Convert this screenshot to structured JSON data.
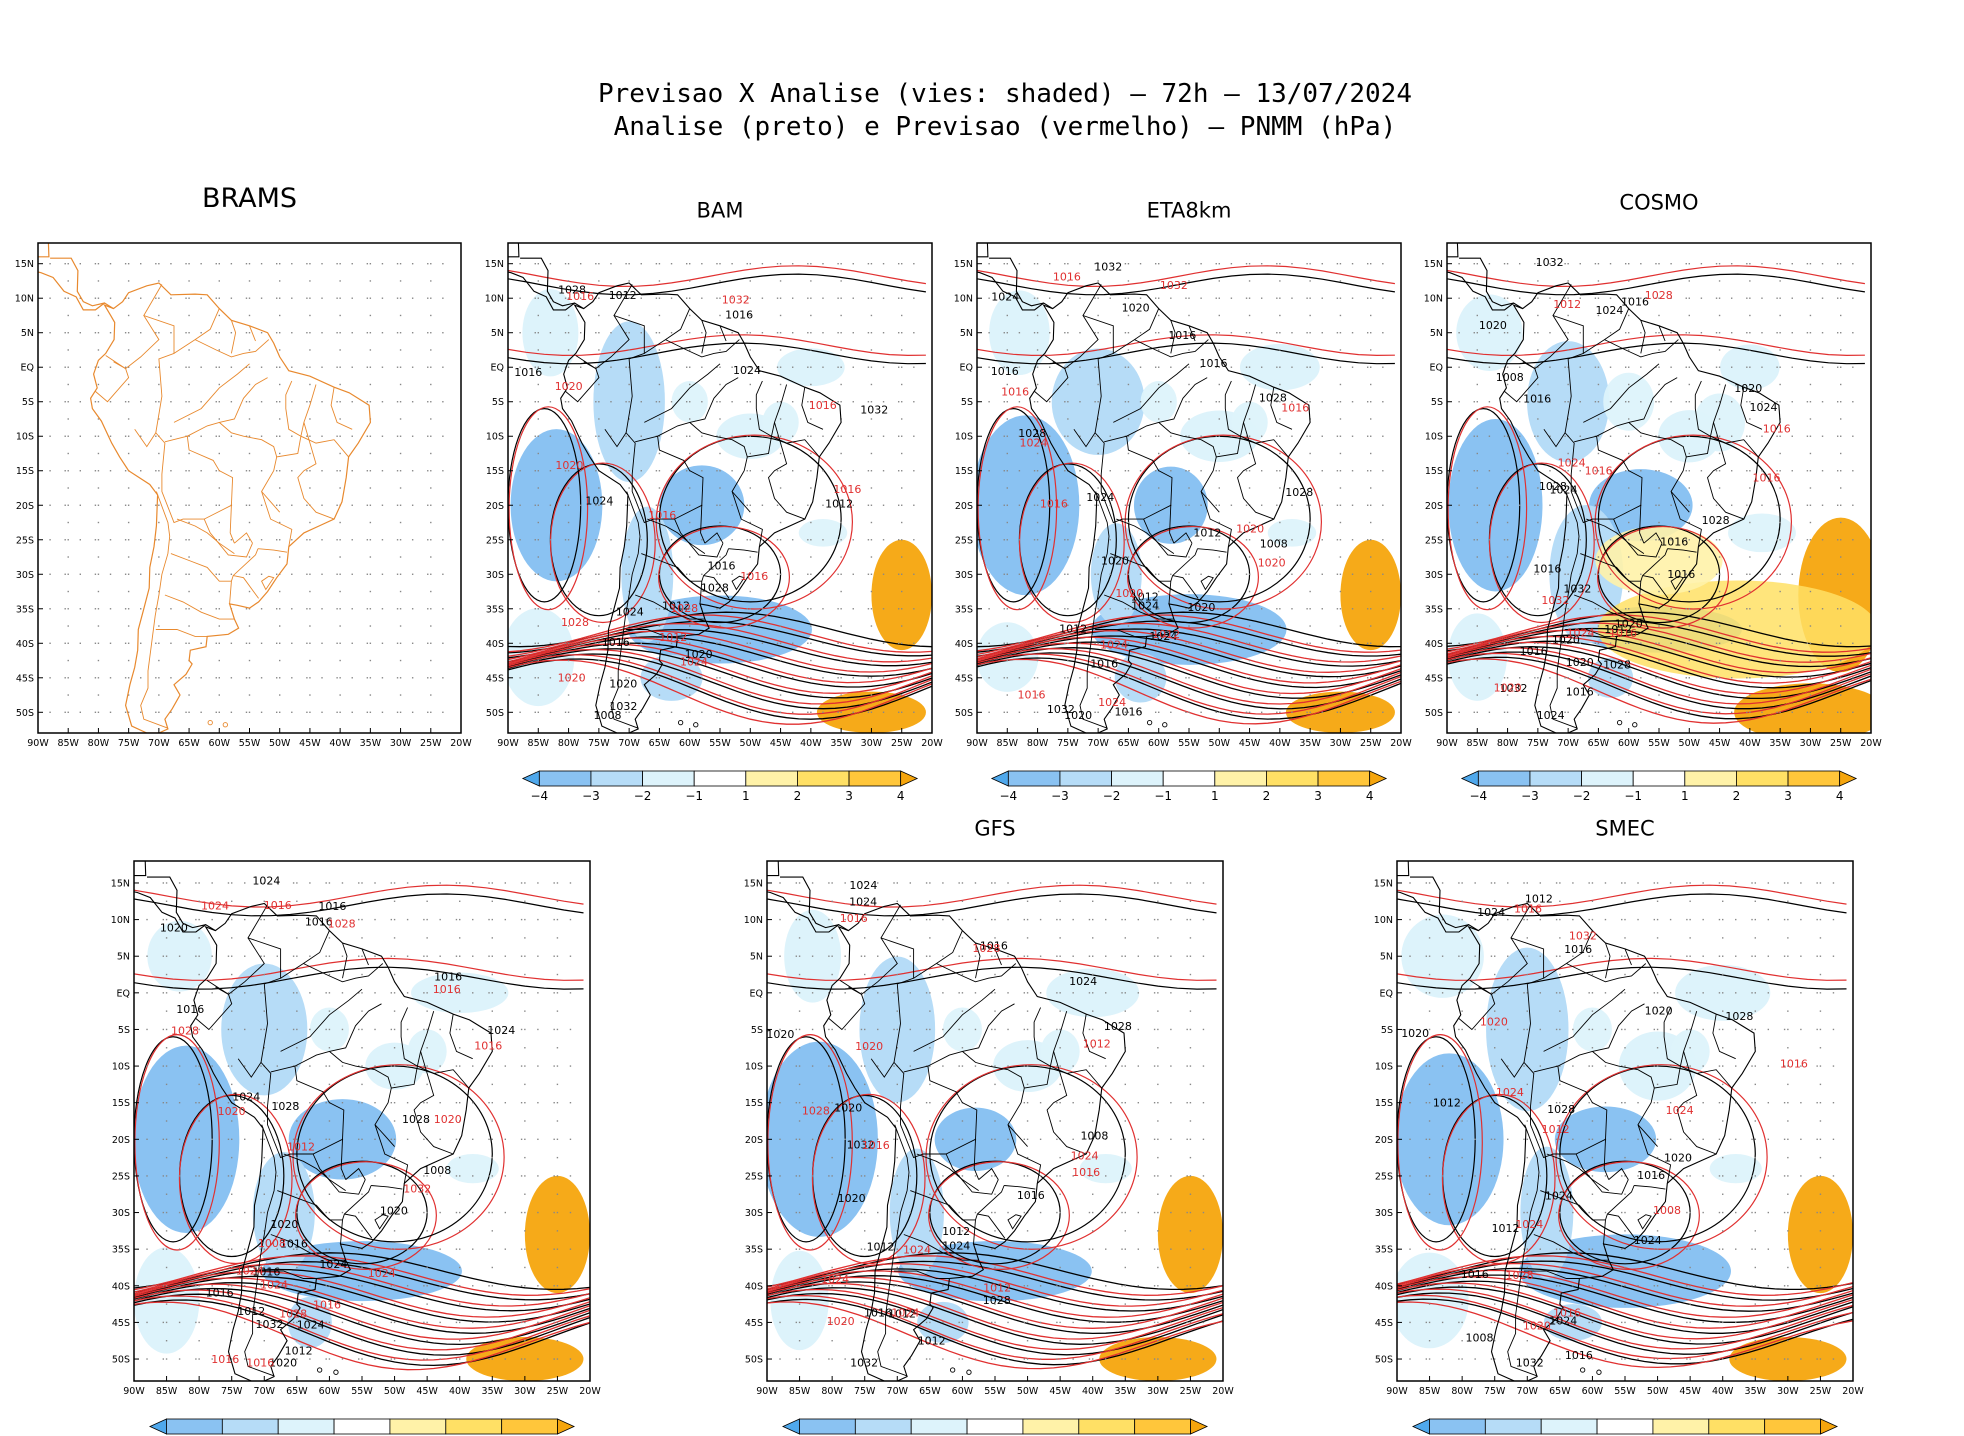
{
  "figure": {
    "title_line1": "Previsao X Analise (vies: shaded) – 72h – 13/07/2024",
    "title_line2": "Analise (preto) e Previsao (vermelho) – PNMM (hPa)"
  },
  "axes": {
    "lat_labels": [
      "15N",
      "10N",
      "5N",
      "EQ",
      "5S",
      "10S",
      "15S",
      "20S",
      "25S",
      "30S",
      "35S",
      "40S",
      "45S",
      "50S"
    ],
    "lon_labels": [
      "90W",
      "85W",
      "80W",
      "75W",
      "70W",
      "65W",
      "60W",
      "55W",
      "50W",
      "45W",
      "40W",
      "35W",
      "30W",
      "25W",
      "20W"
    ]
  },
  "colorbar": {
    "labels": [
      "−4",
      "−3",
      "−2",
      "−1",
      "1",
      "2",
      "3",
      "4"
    ],
    "colors": [
      "#4fa8ec",
      "#8ac2f2",
      "#b6dcf7",
      "#ddf3fb",
      "#ffffff",
      "#fff2a8",
      "#ffe065",
      "#ffc63b",
      "#f5a50d"
    ]
  },
  "colors": {
    "analysis_contour": "#000000",
    "forecast_contour": "#e03030",
    "coastline_brams": "#e8892e"
  },
  "panels": [
    {
      "id": "brams",
      "title": "BRAMS",
      "has_colorbar": false,
      "labels_black": [],
      "labels_red": []
    },
    {
      "id": "bam",
      "title": "BAM",
      "has_colorbar": true,
      "labels_black": [
        "1012",
        "1016",
        "1016",
        "1016",
        "1016",
        "1020",
        "1024",
        "1024",
        "1028",
        "1028",
        "1032",
        "1032",
        "1024",
        "1020",
        "1012",
        "1008",
        "1012"
      ],
      "labels_red": [
        "1016",
        "1016",
        "1012",
        "1016",
        "1020",
        "1016",
        "1020",
        "1028",
        "1032",
        "1028",
        "1016",
        "1020",
        "1024"
      ]
    },
    {
      "id": "eta8km",
      "title": "ETA8km",
      "has_colorbar": true,
      "labels_black": [
        "1012",
        "1016",
        "1016",
        "1012",
        "1016",
        "1016",
        "1016",
        "1020",
        "1020",
        "1024",
        "1020",
        "1028",
        "1024",
        "1024",
        "1032",
        "1032",
        "1028",
        "1028",
        "1024",
        "1020",
        "1012",
        "1008"
      ],
      "labels_red": [
        "1016",
        "1016",
        "1012",
        "1016",
        "1016",
        "1020",
        "1024",
        "1020",
        "1032",
        "1024",
        "1020",
        "1016",
        "1024"
      ]
    },
    {
      "id": "cosmo",
      "title": "COSMO",
      "has_colorbar": true,
      "labels_black": [
        "1012",
        "1016",
        "1016",
        "1016",
        "1016",
        "1016",
        "1020",
        "1016",
        "1020",
        "1020",
        "1024",
        "1024",
        "1024",
        "1028",
        "1032",
        "1032",
        "1028",
        "1028",
        "1032",
        "1024",
        "1020",
        "1016",
        "1008",
        "1020"
      ],
      "labels_red": [
        "1016",
        "1016",
        "1016",
        "1012",
        "1020",
        "1016",
        "1024",
        "1032",
        "1028",
        "1024"
      ]
    },
    {
      "id": "panel5",
      "title": "",
      "has_colorbar": true,
      "labels_black": [
        "1016",
        "1016",
        "1016",
        "1020",
        "1016",
        "1012",
        "1016",
        "1016",
        "1024",
        "1020",
        "1020",
        "1024",
        "1028",
        "1024",
        "1024",
        "1032",
        "1028",
        "1024",
        "1020",
        "1016",
        "1012",
        "1008"
      ],
      "labels_red": [
        "1016",
        "1012",
        "1016",
        "1016",
        "1016",
        "1020",
        "1020",
        "1024",
        "1028",
        "1024",
        "1032",
        "1028",
        "1028",
        "1016",
        "1008",
        "1024",
        "1024",
        "1016"
      ]
    },
    {
      "id": "gfs",
      "title": "GFS",
      "has_colorbar": true,
      "labels_black": [
        "1012",
        "1016",
        "1016",
        "1016",
        "1020",
        "1012",
        "1024",
        "1020",
        "1024",
        "1024",
        "1032",
        "1028",
        "1032",
        "1028",
        "1024",
        "1012",
        "1008",
        "1020",
        "1012"
      ],
      "labels_red": [
        "1012",
        "1016",
        "1012",
        "1016",
        "1020",
        "1024",
        "1028",
        "1024",
        "1028",
        "1024",
        "1016",
        "1020",
        "1024"
      ]
    },
    {
      "id": "smec",
      "title": "SMEC",
      "has_colorbar": true,
      "labels_black": [
        "1012",
        "1016",
        "1016",
        "1016",
        "1020",
        "1016",
        "1020",
        "1024",
        "1024",
        "1024",
        "1032",
        "1028",
        "1028",
        "1024",
        "1012",
        "1008",
        "1020",
        "1012"
      ],
      "labels_red": [
        "1016",
        "1012",
        "1016",
        "1016",
        "1020",
        "1024",
        "1024",
        "1024",
        "1032",
        "1028",
        "1008",
        "1020"
      ]
    }
  ]
}
